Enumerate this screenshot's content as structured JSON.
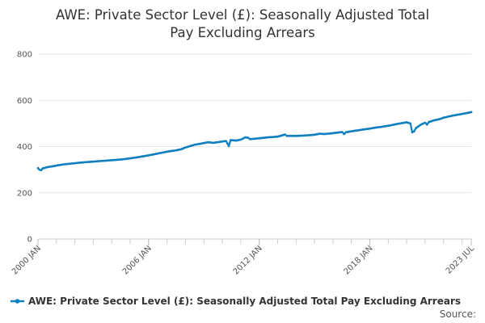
{
  "chart_data": {
    "type": "line",
    "title_lines": [
      "AWE: Private Sector Level (£): Seasonally Adjusted Total",
      "Pay Excluding Arrears"
    ],
    "xlabel": "",
    "ylabel": "",
    "ylim": [
      0,
      800
    ],
    "yticks": [
      0,
      200,
      400,
      600,
      800
    ],
    "xticks": [
      {
        "label": "2000 JAN",
        "t": 2000.0
      },
      {
        "label": "2006 JAN",
        "t": 2006.0
      },
      {
        "label": "2012 JAN",
        "t": 2012.0
      },
      {
        "label": "2018 JAN",
        "t": 2018.0
      },
      {
        "label": "2023 JUL",
        "t": 2023.5
      }
    ],
    "xlim": [
      2000.0,
      2023.5
    ],
    "grid": "horizontal",
    "legend_position": "bottom",
    "source_label": "Source:",
    "colors": {
      "series": "#0f7fbf"
    },
    "series": [
      {
        "name": "AWE: Private Sector Level (£): Seasonally Adjusted Total Pay Excluding Arrears",
        "points": [
          [
            2000.0,
            307
          ],
          [
            2000.08,
            300
          ],
          [
            2000.17,
            298
          ],
          [
            2000.25,
            305
          ],
          [
            2000.5,
            311
          ],
          [
            2000.75,
            314
          ],
          [
            2001.0,
            318
          ],
          [
            2001.5,
            324
          ],
          [
            2002.0,
            328
          ],
          [
            2002.5,
            332
          ],
          [
            2003.0,
            335
          ],
          [
            2003.5,
            338
          ],
          [
            2004.0,
            341
          ],
          [
            2004.5,
            344
          ],
          [
            2005.0,
            349
          ],
          [
            2005.5,
            355
          ],
          [
            2006.0,
            362
          ],
          [
            2006.5,
            370
          ],
          [
            2007.0,
            378
          ],
          [
            2007.5,
            384
          ],
          [
            2007.75,
            388
          ],
          [
            2008.0,
            396
          ],
          [
            2008.5,
            408
          ],
          [
            2009.0,
            415
          ],
          [
            2009.25,
            419
          ],
          [
            2009.5,
            416
          ],
          [
            2010.0,
            422
          ],
          [
            2010.2,
            424
          ],
          [
            2010.35,
            402
          ],
          [
            2010.45,
            428
          ],
          [
            2010.75,
            426
          ],
          [
            2011.0,
            430
          ],
          [
            2011.25,
            440
          ],
          [
            2011.4,
            438
          ],
          [
            2011.5,
            432
          ],
          [
            2012.0,
            436
          ],
          [
            2012.5,
            440
          ],
          [
            2013.0,
            443
          ],
          [
            2013.4,
            452
          ],
          [
            2013.5,
            446
          ],
          [
            2014.0,
            446
          ],
          [
            2014.5,
            448
          ],
          [
            2015.0,
            451
          ],
          [
            2015.3,
            456
          ],
          [
            2015.5,
            454
          ],
          [
            2016.0,
            458
          ],
          [
            2016.5,
            463
          ],
          [
            2016.6,
            454
          ],
          [
            2016.7,
            462
          ],
          [
            2017.0,
            466
          ],
          [
            2017.5,
            472
          ],
          [
            2018.0,
            478
          ],
          [
            2018.5,
            484
          ],
          [
            2019.0,
            490
          ],
          [
            2019.5,
            498
          ],
          [
            2020.0,
            505
          ],
          [
            2020.2,
            500
          ],
          [
            2020.3,
            462
          ],
          [
            2020.4,
            466
          ],
          [
            2020.5,
            480
          ],
          [
            2020.75,
            494
          ],
          [
            2020.9,
            500
          ],
          [
            2021.0,
            503
          ],
          [
            2021.1,
            495
          ],
          [
            2021.2,
            506
          ],
          [
            2021.5,
            514
          ],
          [
            2021.75,
            518
          ],
          [
            2022.0,
            525
          ],
          [
            2022.5,
            534
          ],
          [
            2023.0,
            541
          ],
          [
            2023.5,
            549
          ]
        ]
      }
    ]
  }
}
